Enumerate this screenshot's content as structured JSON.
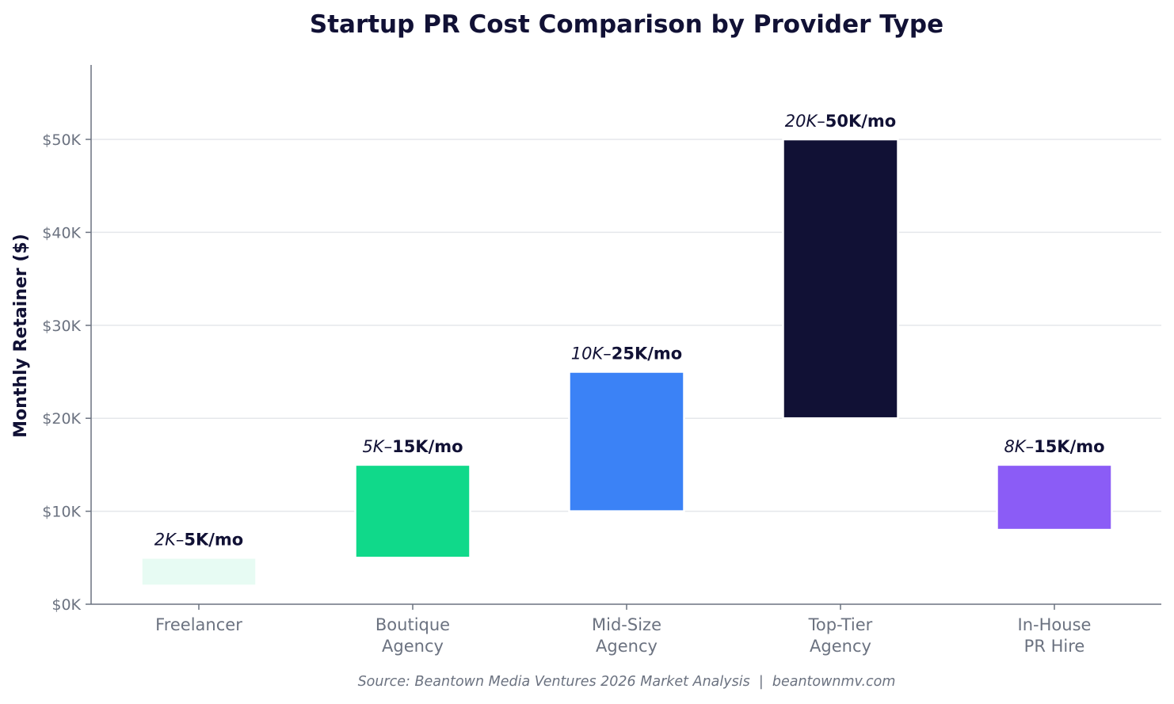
{
  "chart_data": {
    "type": "bar",
    "subtype": "floating-range",
    "title": "Startup PR Cost Comparison by Provider Type",
    "xlabel": "",
    "ylabel": "Monthly Retainer ($)",
    "ylim": [
      0,
      58000
    ],
    "yticks": [
      {
        "value": 0,
        "label": "$0K"
      },
      {
        "value": 10000,
        "label": "$10K"
      },
      {
        "value": 20000,
        "label": "$20K"
      },
      {
        "value": 30000,
        "label": "$30K"
      },
      {
        "value": 40000,
        "label": "$40K"
      },
      {
        "value": 50000,
        "label": "$50K"
      }
    ],
    "grid": true,
    "legend": "none",
    "categories": [
      [
        "Freelancer"
      ],
      [
        "Boutique",
        "Agency"
      ],
      [
        "Mid-Size",
        "Agency"
      ],
      [
        "Top-Tier",
        "Agency"
      ],
      [
        "In-House",
        "PR Hire"
      ]
    ],
    "bars": [
      {
        "low": 2000,
        "high": 5000,
        "color": "#10d98a",
        "faint": true,
        "label_italic": "2K",
        "label_bold": "5K/mo"
      },
      {
        "low": 5000,
        "high": 15000,
        "color": "#10d98a",
        "faint": false,
        "label_italic": "5K",
        "label_bold": "15K/mo"
      },
      {
        "low": 10000,
        "high": 25000,
        "color": "#3b82f6",
        "faint": false,
        "label_italic": "10K",
        "label_bold": "25K/mo"
      },
      {
        "low": 20000,
        "high": 50000,
        "color": "#111135",
        "faint": false,
        "label_italic": "20K",
        "label_bold": "50K/mo"
      },
      {
        "low": 8000,
        "high": 15000,
        "color": "#8b5cf6",
        "faint": false,
        "label_italic": "8K",
        "label_bold": "15K/mo"
      }
    ],
    "label_separator": "–",
    "colors": {
      "title": "#111135",
      "tick": "#6b7280",
      "axis": "#6b7280",
      "grid": "#e5e7eb"
    }
  },
  "source": "Source: Beantown Media Ventures 2026 Market Analysis  |  beantownmv.com"
}
